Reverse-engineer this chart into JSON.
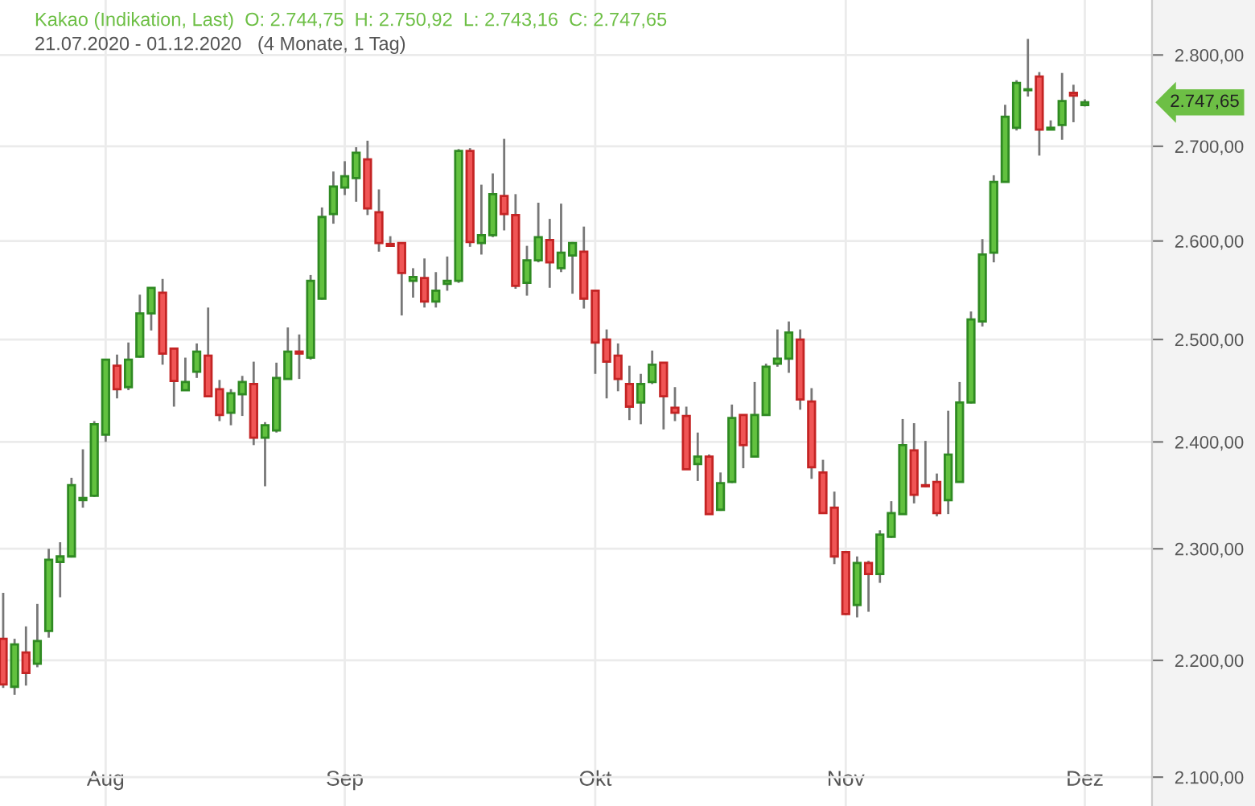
{
  "chart_data": {
    "type": "candlestick",
    "title": "Kakao (Indikation, Last)  O: 2.744,75  H: 2.750,92  L: 2.743,16  C: 2.747,65",
    "subtitle": "21.07.2020 - 01.12.2020   (4 Monate, 1 Tag)",
    "categories": [
      null,
      null,
      null,
      null,
      null,
      null,
      null,
      null,
      null,
      "Aug",
      null,
      null,
      null,
      null,
      null,
      null,
      null,
      null,
      null,
      null,
      null,
      null,
      null,
      null,
      null,
      null,
      null,
      null,
      null,
      null,
      "Sep",
      null,
      null,
      null,
      null,
      null,
      null,
      null,
      null,
      null,
      null,
      null,
      null,
      null,
      null,
      null,
      null,
      null,
      null,
      null,
      null,
      null,
      "Okt",
      null,
      null,
      null,
      null,
      null,
      null,
      null,
      null,
      null,
      null,
      null,
      null,
      null,
      null,
      null,
      null,
      null,
      null,
      null,
      null,
      null,
      "Nov",
      null,
      null,
      null,
      null,
      null,
      null,
      null,
      null,
      null,
      null,
      null,
      null,
      null,
      null,
      null,
      null,
      null,
      null,
      null,
      null,
      "Dez"
    ],
    "ohlc": [
      [
        2219,
        2260,
        2176,
        2179
      ],
      [
        2177,
        2219,
        2170,
        2214
      ],
      [
        2207,
        2230,
        2178,
        2189
      ],
      [
        2197,
        2250,
        2194,
        2217
      ],
      [
        2226,
        2300,
        2220,
        2290
      ],
      [
        2288,
        2306,
        2256,
        2293
      ],
      [
        2293,
        2366,
        2292,
        2359
      ],
      [
        2345,
        2393,
        2338,
        2347
      ],
      [
        2349,
        2420,
        2348,
        2417
      ],
      [
        2407,
        2480,
        2400,
        2480
      ],
      [
        2474,
        2485,
        2442,
        2451
      ],
      [
        2453,
        2497,
        2450,
        2480
      ],
      [
        2483,
        2545,
        2482,
        2526
      ],
      [
        2526,
        2552,
        2509,
        2552
      ],
      [
        2547,
        2561,
        2475,
        2486
      ],
      [
        2491,
        2491,
        2434,
        2459
      ],
      [
        2450,
        2482,
        2450,
        2458
      ],
      [
        2468,
        2496,
        2462,
        2488
      ],
      [
        2484,
        2532,
        2444,
        2444
      ],
      [
        2451,
        2460,
        2420,
        2426
      ],
      [
        2428,
        2451,
        2416,
        2447
      ],
      [
        2446,
        2464,
        2425,
        2458
      ],
      [
        2456,
        2478,
        2397,
        2404
      ],
      [
        2404,
        2419,
        2358,
        2416
      ],
      [
        2411,
        2477,
        2409,
        2462
      ],
      [
        2461,
        2512,
        2461,
        2488
      ],
      [
        2488,
        2505,
        2461,
        2486
      ],
      [
        2482,
        2565,
        2480,
        2559
      ],
      [
        2541,
        2635,
        2540,
        2625
      ],
      [
        2628,
        2673,
        2618,
        2657
      ],
      [
        2656,
        2684,
        2648,
        2668
      ],
      [
        2666,
        2699,
        2641,
        2693
      ],
      [
        2686,
        2706,
        2627,
        2634
      ],
      [
        2630,
        2654,
        2589,
        2598
      ],
      [
        2597,
        2605,
        2594,
        2595
      ],
      [
        2598,
        2598,
        2524,
        2567
      ],
      [
        2559,
        2572,
        2542,
        2563
      ],
      [
        2562,
        2582,
        2532,
        2538
      ],
      [
        2538,
        2568,
        2532,
        2549
      ],
      [
        2556,
        2584,
        2549,
        2559
      ],
      [
        2559,
        2697,
        2557,
        2695
      ],
      [
        2695,
        2698,
        2594,
        2599
      ],
      [
        2598,
        2659,
        2586,
        2606
      ],
      [
        2606,
        2671,
        2604,
        2649
      ],
      [
        2647,
        2708,
        2611,
        2628
      ],
      [
        2627,
        2649,
        2551,
        2554
      ],
      [
        2557,
        2595,
        2544,
        2580
      ],
      [
        2580,
        2640,
        2578,
        2604
      ],
      [
        2601,
        2623,
        2552,
        2578
      ],
      [
        2572,
        2639,
        2568,
        2588
      ],
      [
        2585,
        2599,
        2546,
        2598
      ],
      [
        2589,
        2615,
        2531,
        2541
      ],
      [
        2549,
        2549,
        2466,
        2497
      ],
      [
        2500,
        2510,
        2442,
        2478
      ],
      [
        2484,
        2496,
        2449,
        2461
      ],
      [
        2456,
        2474,
        2421,
        2434
      ],
      [
        2438,
        2466,
        2417,
        2456
      ],
      [
        2458,
        2489,
        2456,
        2475
      ],
      [
        2477,
        2477,
        2412,
        2444
      ],
      [
        2433,
        2453,
        2420,
        2428
      ],
      [
        2425,
        2434,
        2374,
        2374
      ],
      [
        2379,
        2409,
        2363,
        2386
      ],
      [
        2386,
        2388,
        2332,
        2332
      ],
      [
        2336,
        2371,
        2335,
        2361
      ],
      [
        2362,
        2436,
        2361,
        2423
      ],
      [
        2426,
        2426,
        2375,
        2397
      ],
      [
        2386,
        2458,
        2386,
        2426
      ],
      [
        2426,
        2476,
        2426,
        2473
      ],
      [
        2476,
        2510,
        2473,
        2481
      ],
      [
        2481,
        2518,
        2467,
        2507
      ],
      [
        2500,
        2510,
        2431,
        2441
      ],
      [
        2439,
        2452,
        2365,
        2376
      ],
      [
        2371,
        2383,
        2333,
        2333
      ],
      [
        2338,
        2353,
        2286,
        2293
      ],
      [
        2297,
        2297,
        2240,
        2241
      ],
      [
        2249,
        2293,
        2238,
        2287
      ],
      [
        2287,
        2289,
        2243,
        2277
      ],
      [
        2277,
        2317,
        2269,
        2313
      ],
      [
        2311,
        2344,
        2310,
        2333
      ],
      [
        2332,
        2422,
        2332,
        2397
      ],
      [
        2392,
        2418,
        2342,
        2350
      ],
      [
        2359,
        2401,
        2357,
        2358
      ],
      [
        2362,
        2370,
        2330,
        2333
      ],
      [
        2345,
        2430,
        2332,
        2388
      ],
      [
        2362,
        2458,
        2362,
        2438
      ],
      [
        2438,
        2528,
        2437,
        2520
      ],
      [
        2518,
        2602,
        2513,
        2586
      ],
      [
        2588,
        2669,
        2578,
        2662
      ],
      [
        2662,
        2745,
        2662,
        2732
      ],
      [
        2720,
        2772,
        2717,
        2769
      ],
      [
        2761,
        2818,
        2754,
        2762
      ],
      [
        2776,
        2781,
        2690,
        2718
      ],
      [
        2718,
        2728,
        2718,
        2720
      ],
      [
        2723,
        2780,
        2707,
        2749
      ],
      [
        2758,
        2767,
        2726,
        2755
      ],
      [
        2744.75,
        2750.92,
        2743.16,
        2747.65
      ]
    ],
    "log": true,
    "ylim": [
      2076,
      2862
    ],
    "yticks": [
      {
        "value": 2100,
        "label": "2.100,00"
      },
      {
        "value": 2200,
        "label": "2.200,00"
      },
      {
        "value": 2300,
        "label": "2.300,00"
      },
      {
        "value": 2400,
        "label": "2.400,00"
      },
      {
        "value": 2500,
        "label": "2.500,00"
      },
      {
        "value": 2600,
        "label": "2.600,00"
      },
      {
        "value": 2700,
        "label": "2.700,00"
      },
      {
        "value": 2800,
        "label": "2.800,00"
      }
    ],
    "grid": true,
    "annotations": [
      "2.747,65"
    ]
  }
}
